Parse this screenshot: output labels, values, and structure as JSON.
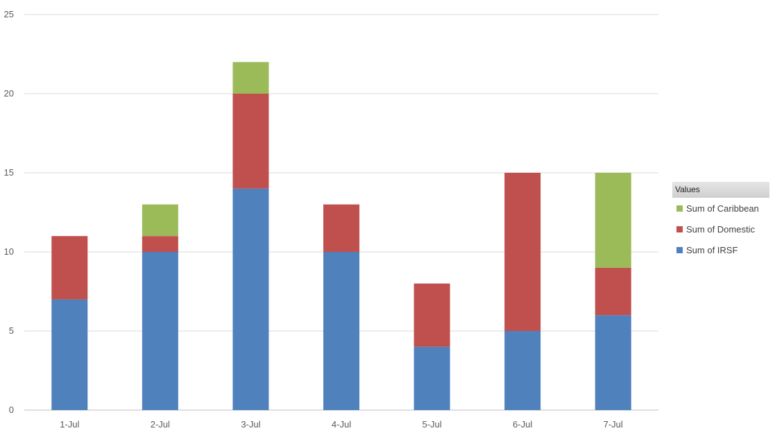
{
  "chart_data": {
    "type": "bar",
    "stacked": true,
    "categories": [
      "1-Jul",
      "2-Jul",
      "3-Jul",
      "4-Jul",
      "5-Jul",
      "6-Jul",
      "7-Jul"
    ],
    "series": [
      {
        "name": "Sum of IRSF",
        "color": "#4f81bd",
        "values": [
          7,
          10,
          14,
          10,
          4,
          5,
          6
        ]
      },
      {
        "name": "Sum of Domestic",
        "color": "#c0504d",
        "values": [
          4,
          1,
          6,
          3,
          4,
          10,
          3
        ]
      },
      {
        "name": "Sum of Caribbean",
        "color": "#9bbb59",
        "values": [
          0,
          2,
          2,
          0,
          0,
          0,
          6
        ]
      }
    ],
    "ylim": [
      0,
      25
    ],
    "yticks": [
      0,
      5,
      10,
      15,
      20,
      25
    ],
    "grid": true,
    "legend_placement": "right",
    "legend_title": "Values",
    "title": "",
    "xlabel": "",
    "ylabel": ""
  }
}
